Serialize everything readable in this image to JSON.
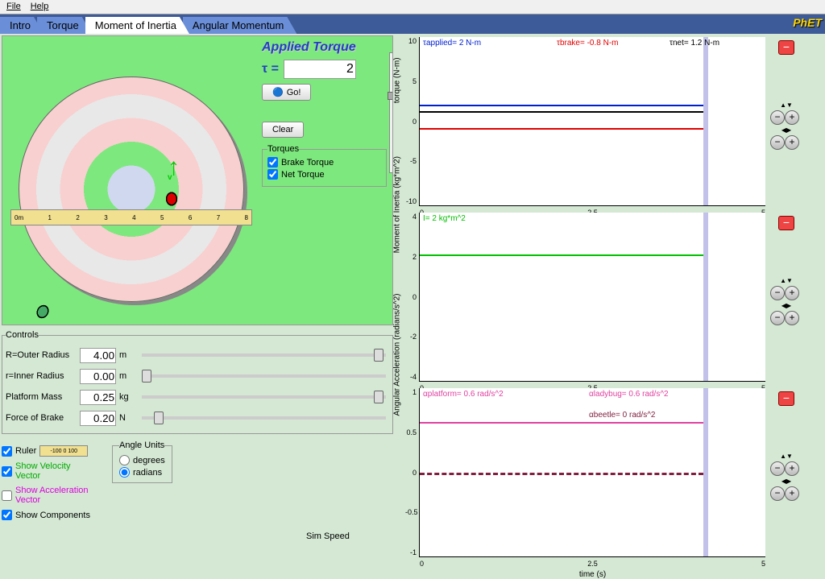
{
  "menu": {
    "file": "File",
    "help": "Help"
  },
  "tabs": [
    "Intro",
    "Torque",
    "Moment of Inertia",
    "Angular Momentum"
  ],
  "active_tab": "Moment of Inertia",
  "logo": "PhET",
  "applied": {
    "title": "Applied Torque",
    "tau_label": "τ  =",
    "tau_value": "2",
    "go": "Go!",
    "clear": "Clear",
    "torques_legend": "Torques",
    "brake_torque": "Brake Torque",
    "net_torque": "Net Torque"
  },
  "controls": {
    "legend": "Controls",
    "rows": [
      {
        "label": "R=Outer Radius",
        "value": "4.00",
        "unit": "m",
        "thumb": 95
      },
      {
        "label": "r=Inner Radius",
        "value": "0.00",
        "unit": "m",
        "thumb": 0
      },
      {
        "label": "Platform Mass",
        "value": "0.25",
        "unit": "kg",
        "thumb": 95
      },
      {
        "label": "Force of Brake",
        "value": "0.20",
        "unit": "N",
        "thumb": 5
      }
    ]
  },
  "options": {
    "ruler": "Ruler",
    "vel": "Show Velocity Vector",
    "acc": "Show Acceleration Vector",
    "comp": "Show Components",
    "angle_legend": "Angle Units",
    "degrees": "degrees",
    "radians": "radians"
  },
  "ruler_marks": [
    "0m",
    "1",
    "2",
    "3",
    "4",
    "5",
    "6",
    "7",
    "8"
  ],
  "vec_label": "v",
  "sim_speed": "Sim Speed",
  "graphs": {
    "xticks": [
      "0",
      "2.5",
      "5"
    ],
    "xlabel": "time (s)",
    "torque": {
      "ylabel": "torque (N-m)",
      "yticks": [
        "10",
        "5",
        "0",
        "-5",
        "-10"
      ],
      "applied": {
        "text": "τapplied= 2 N-m",
        "color": "#0020d0",
        "y": 40
      },
      "brake": {
        "text": "τbrake= -0.8 N-m",
        "color": "#e00000",
        "y": 54
      },
      "net": {
        "text": "τnet= 1.2 N-m",
        "color": "#000",
        "y": 44
      }
    },
    "inertia": {
      "ylabel": "Moment of Inertia (kg*m^2)",
      "yticks": [
        "4",
        "2",
        "0",
        "-2",
        "-4"
      ],
      "val": {
        "text": "I= 2 kg*m^2",
        "color": "#00c000",
        "y": 25
      }
    },
    "accel": {
      "ylabel": "Angular Acceleration (radians/s^2)",
      "yticks": [
        "1",
        "0.5",
        "0",
        "-0.5",
        "-1"
      ],
      "platform": {
        "text": "αplatform= 0.6 rad/s^2",
        "color": "#e040a0"
      },
      "ladybug": {
        "text": "αladybug= 0.6 rad/s^2",
        "color": "#e040a0"
      },
      "beetle": {
        "text": "αbeetle= 0 rad/s^2",
        "color": "#802040"
      }
    }
  },
  "zoom": {
    "minus": "−",
    "plus": "+"
  }
}
